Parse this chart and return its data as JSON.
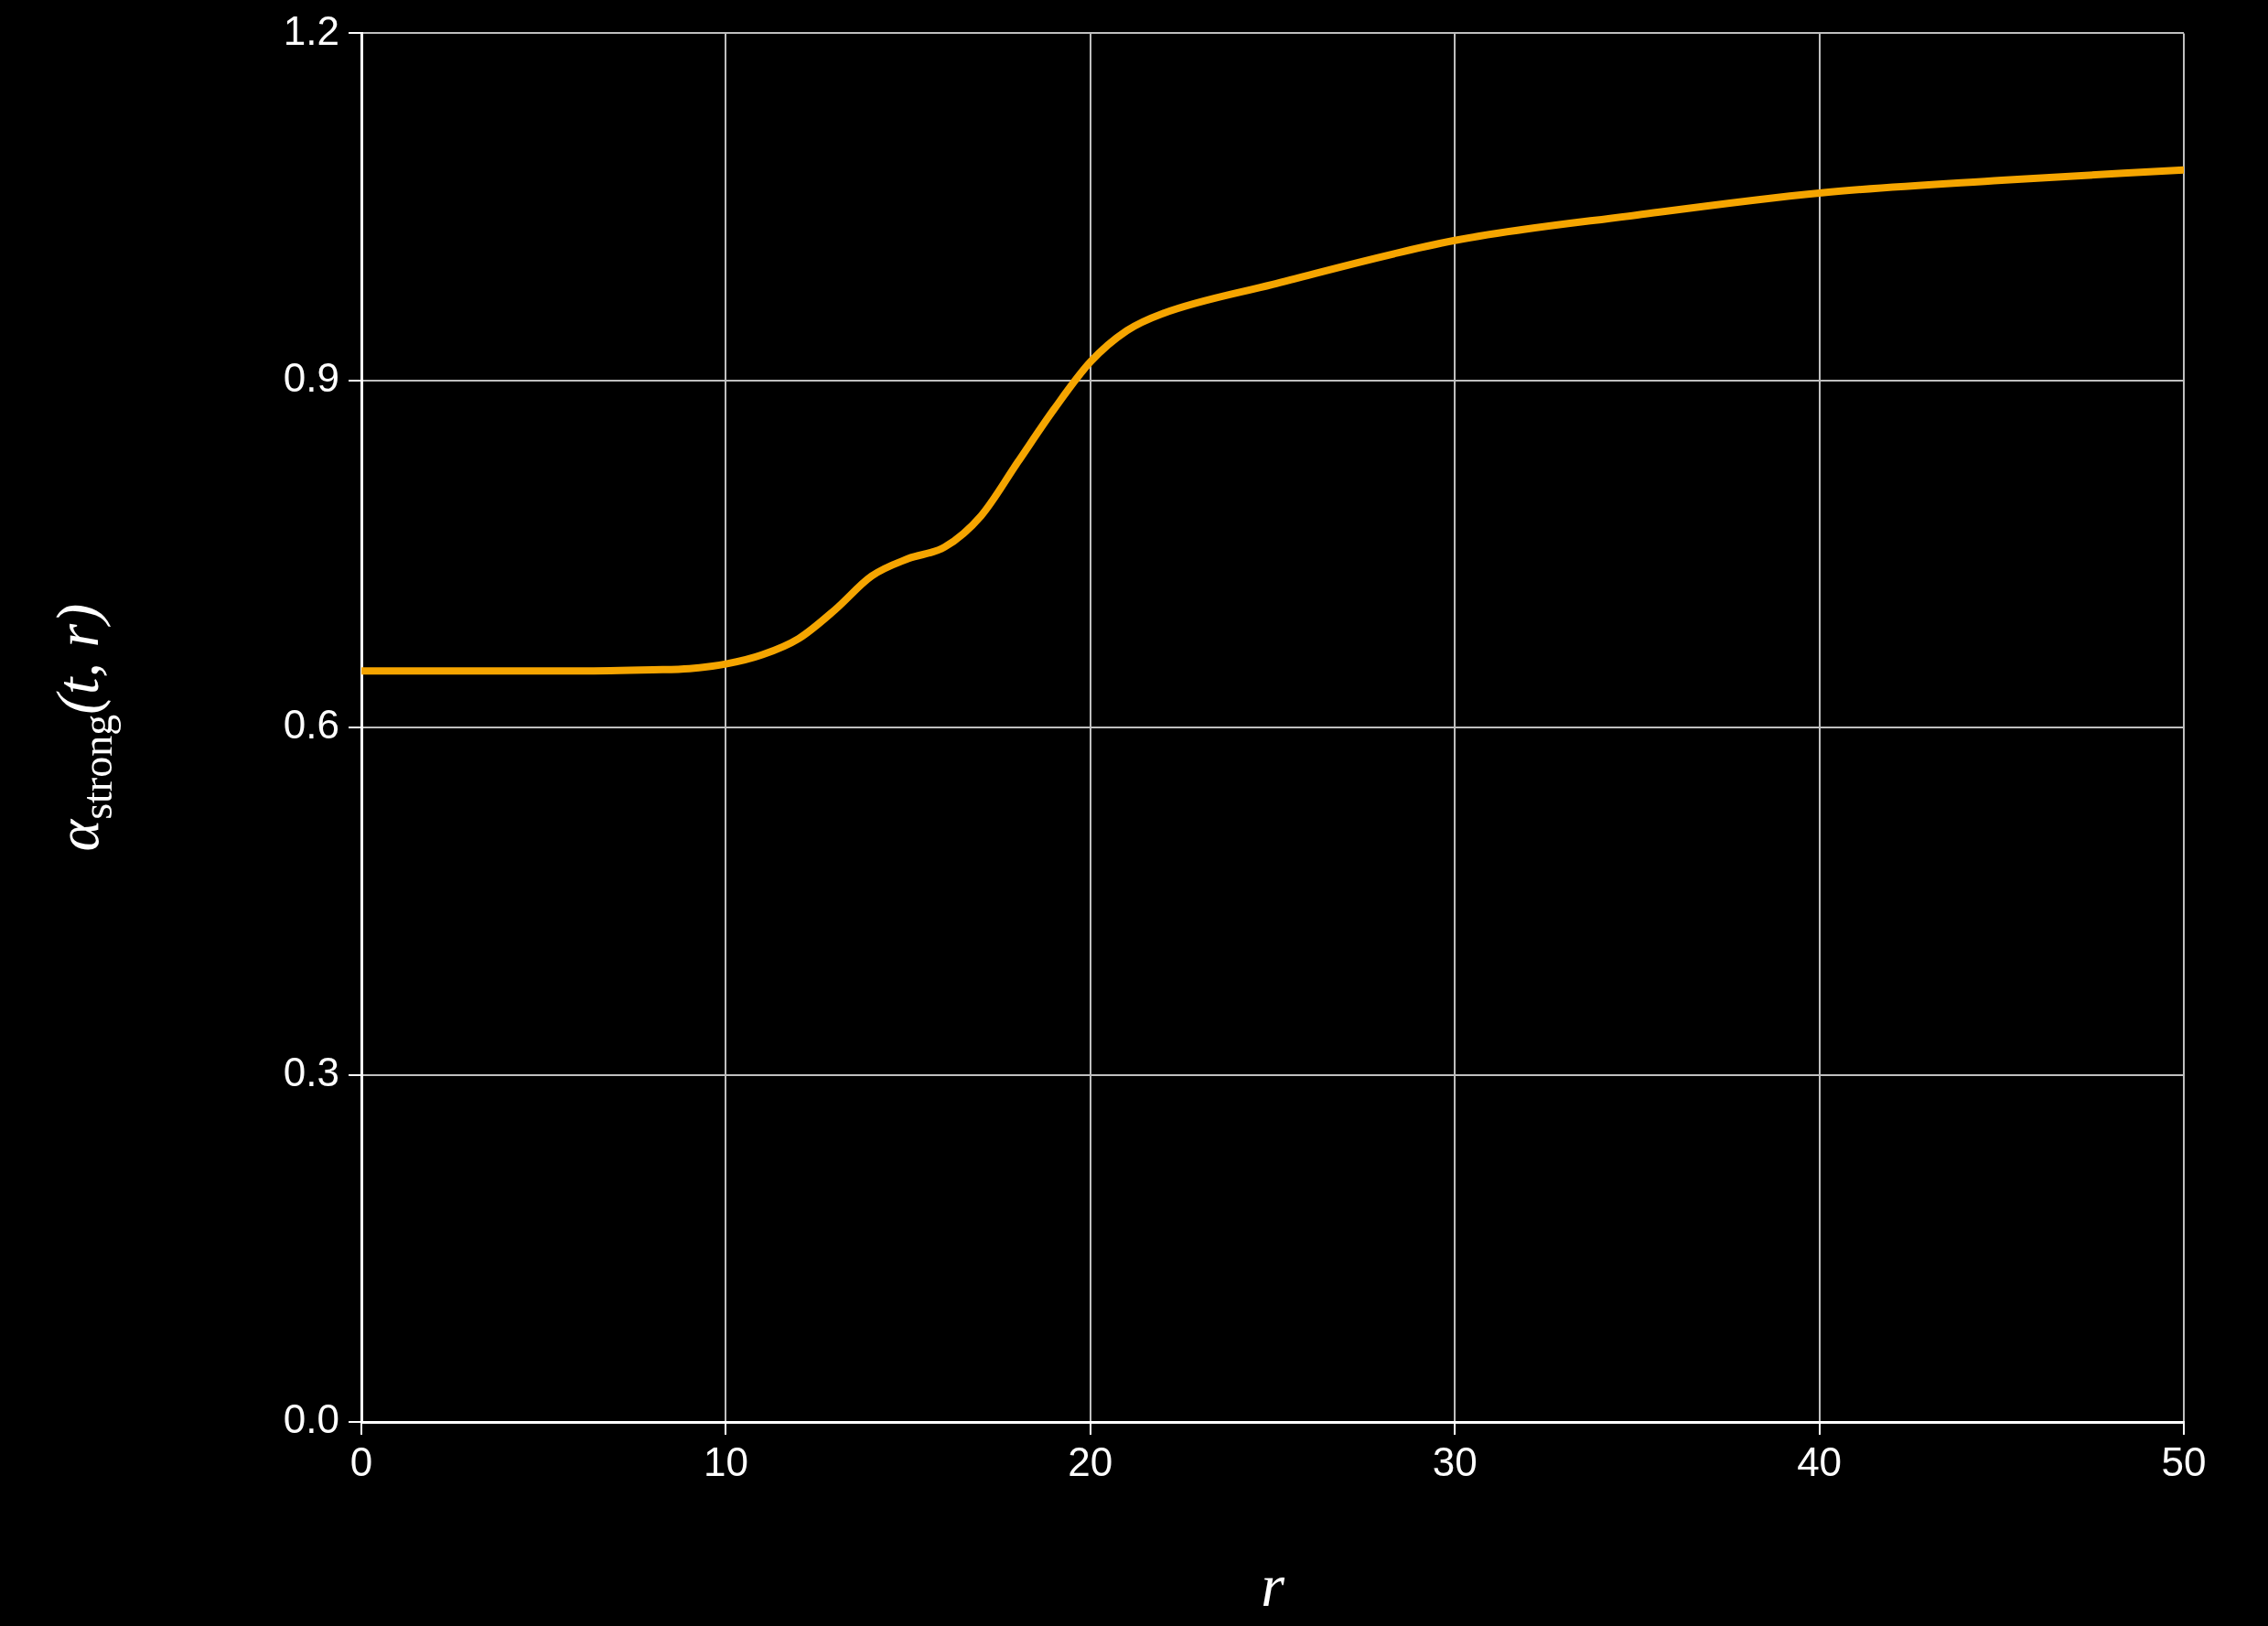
{
  "chart_data": {
    "type": "line",
    "xlabel": "r",
    "ylabel": "α$_{strong}$(t, r)",
    "x": [
      0,
      2,
      4,
      6,
      8,
      9,
      10,
      11,
      12,
      13,
      14,
      15,
      16,
      17,
      18,
      19,
      20,
      21,
      22,
      25,
      30,
      35,
      40,
      45,
      50
    ],
    "series": [
      {
        "color": "#f5a500",
        "values": [
          0.649,
          0.649,
          0.649,
          0.649,
          0.65,
          0.651,
          0.655,
          0.663,
          0.677,
          0.702,
          0.731,
          0.746,
          0.756,
          0.783,
          0.829,
          0.875,
          0.916,
          0.943,
          0.958,
          0.983,
          1.021,
          1.043,
          1.062,
          1.073,
          1.082
        ]
      }
    ],
    "xlim": [
      0,
      50
    ],
    "xticks": [
      0,
      10,
      20,
      30,
      40,
      50
    ],
    "ylim": [
      0,
      1.2
    ],
    "yticks": [
      {
        "value": 0,
        "label": "0.0"
      },
      0.3,
      0.6,
      0.9,
      {
        "value": 1.2,
        "label": "1.2"
      }
    ],
    "grid": true,
    "legend": false,
    "marker": "none",
    "line_style": "solid"
  }
}
